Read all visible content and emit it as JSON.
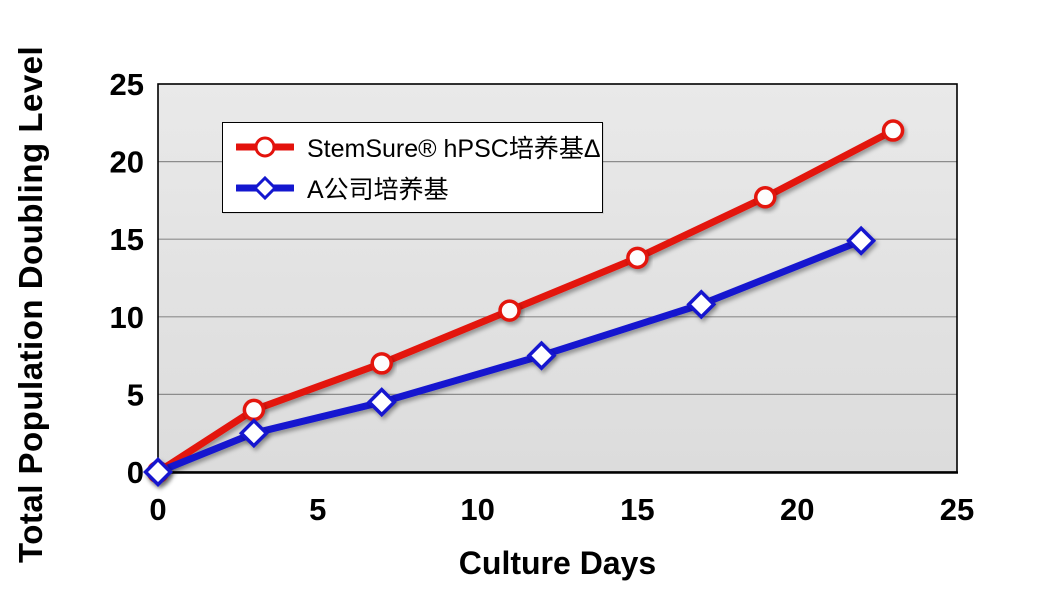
{
  "chart_data": {
    "type": "line",
    "title": "",
    "xlabel": "Culture Days",
    "ylabel": "Total Population Doubling Level",
    "xlim": [
      0,
      25
    ],
    "ylim": [
      0,
      25
    ],
    "x_ticks": [
      0,
      5,
      10,
      15,
      20,
      25
    ],
    "y_ticks": [
      0,
      5,
      10,
      15,
      20,
      25
    ],
    "grid": "horizontal-only",
    "legend_position": "inside-top-left",
    "series": [
      {
        "name": "StemSure® hPSC培养基Δ",
        "color": "#e3120c",
        "marker": "circle",
        "marker_fill": "#fdfdfd",
        "x": [
          0,
          3,
          7,
          11,
          15,
          19,
          23
        ],
        "values": [
          0,
          4.0,
          7.0,
          10.4,
          13.8,
          17.7,
          22.0
        ]
      },
      {
        "name": "A公司培养基",
        "color": "#1417cf",
        "marker": "diamond",
        "marker_fill": "#ffffff",
        "x": [
          0,
          3,
          7,
          12,
          17,
          22
        ],
        "values": [
          0,
          2.5,
          4.5,
          7.5,
          10.8,
          14.9
        ]
      }
    ],
    "layout": {
      "plot_bg_top": "#e9e9e9",
      "plot_bg_bottom": "#dcdcdc",
      "grid_color": "#8c8c8c",
      "border_color": "#000000"
    }
  }
}
